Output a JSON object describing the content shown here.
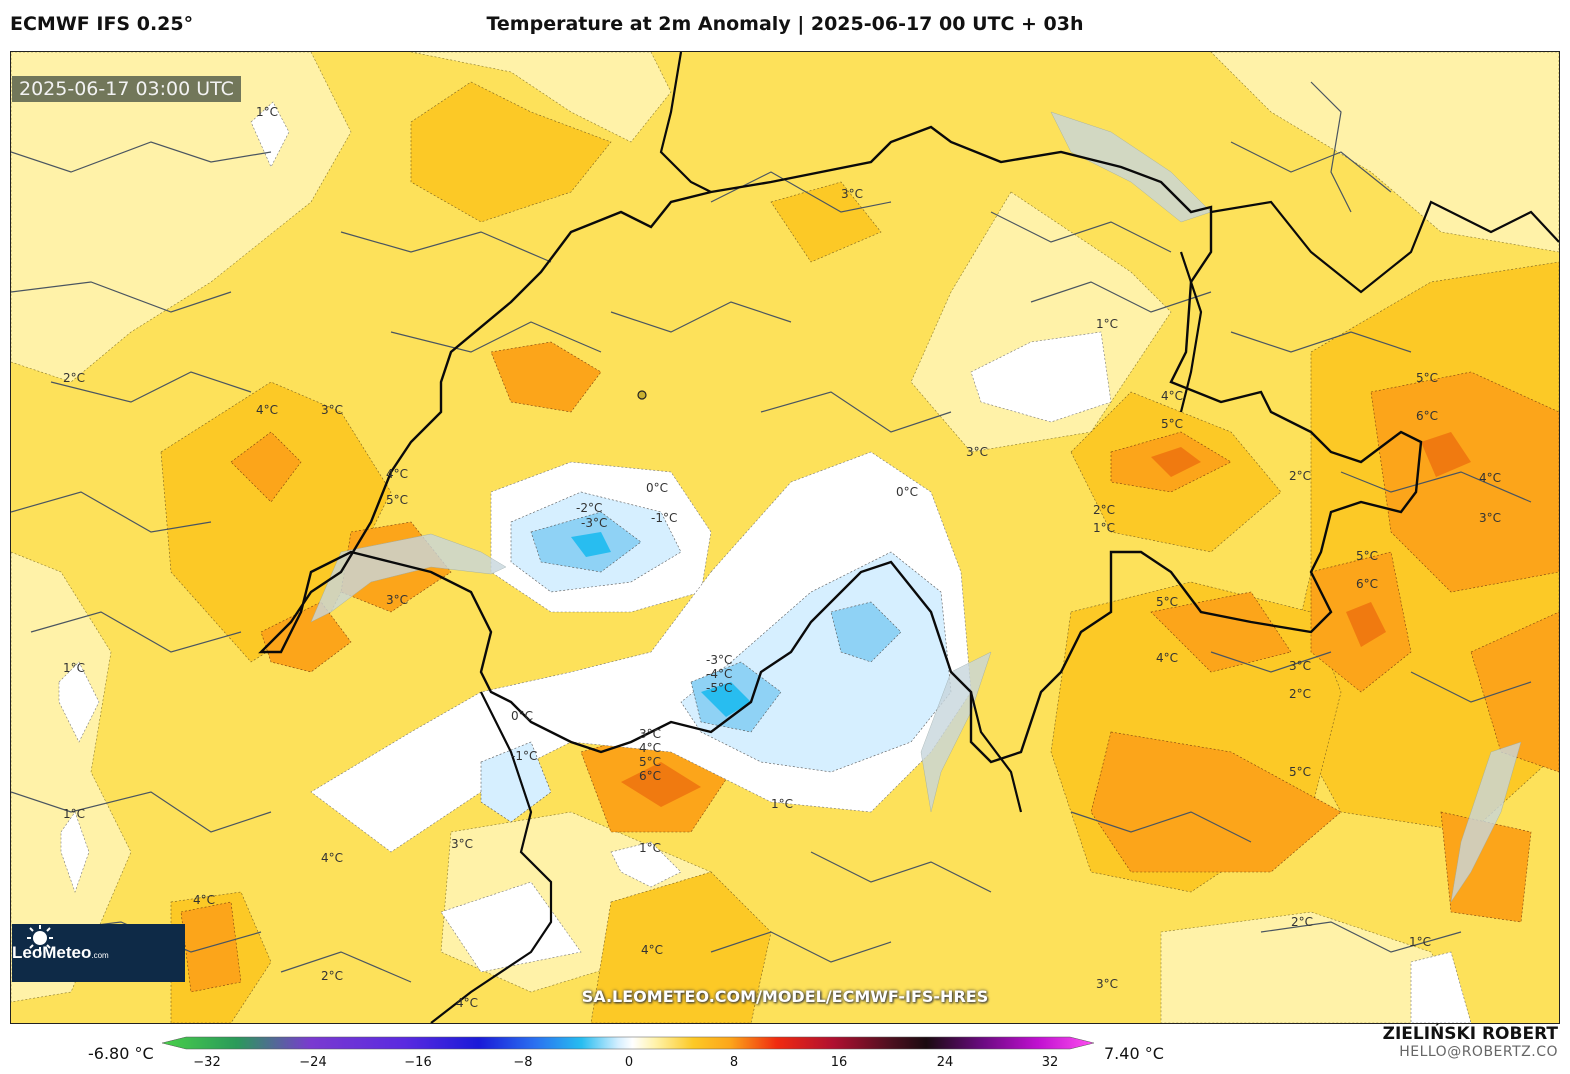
{
  "header": {
    "model": "ECMWF IFS 0.25°",
    "title": "Temperature at 2m Anomaly | 2025-06-17 00 UTC + 03h"
  },
  "map": {
    "timestamp": "2025-06-17 03:00 UTC",
    "source_url": "SA.LEOMETEO.COM/MODEL/ECMWF-IFS-HRES",
    "logo_text": "LeoMeteo",
    "logo_suffix": ".com",
    "contour_labels": [
      "1°C",
      "2°C",
      "3°C",
      "4°C",
      "5°C",
      "6°C",
      "0°C",
      "-1°C",
      "-2°C",
      "-3°C",
      "-4°C",
      "-5°C"
    ]
  },
  "colorbar": {
    "min_label": "-6.80 °C",
    "max_label": "7.40 °C",
    "ticks": [
      "−32",
      "−24",
      "−16",
      "−8",
      "0",
      "8",
      "16",
      "24",
      "32"
    ]
  },
  "author": {
    "name": "ZIELIŃSKI ROBERT",
    "email": "HELLO@ROBERTZ.CO"
  },
  "colors": {
    "warm_light": "#fff2a8",
    "warm_mid": "#fde15a",
    "warm_strong": "#fcc926",
    "orange": "#fca51a",
    "dark_orange": "#f07a10",
    "cold_white": "#ffffff",
    "cold_light": "#d6efff",
    "cold_blue": "#8fd2f5",
    "cold_strong": "#28bdf0"
  }
}
